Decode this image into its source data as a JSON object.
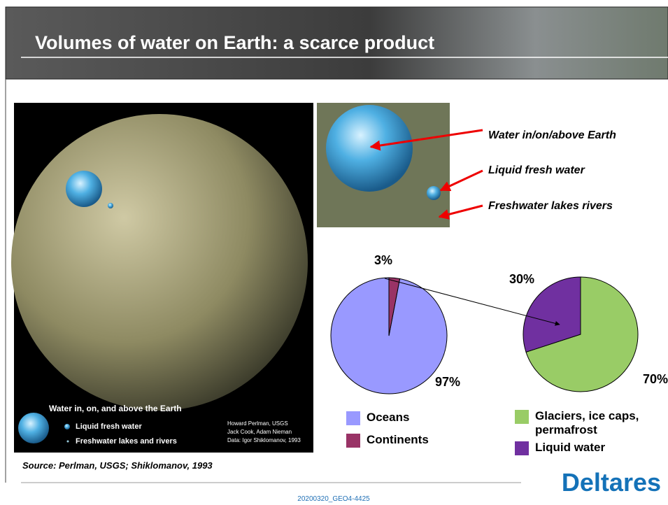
{
  "title": "Volumes of water on Earth: a scarce product",
  "globe_image": {
    "caption": "Water in, on, and above the Earth",
    "legend": [
      "Liquid fresh water",
      "Freshwater lakes and rivers"
    ],
    "credits": [
      "Howard Perlman, USGS",
      "Jack Cook, Adam Nieman",
      "Data: Igor Shiklomanov, 1993"
    ]
  },
  "callouts": [
    "Water in/on/above Earth",
    "Liquid fresh water",
    "Freshwater lakes rivers"
  ],
  "source": "Source: Perlman, USGS; Shiklomanov, 1993",
  "footer": "20200320_GEO4-4425",
  "logo": "Deltares",
  "chart_data": [
    {
      "type": "pie",
      "categories": [
        "Oceans",
        "Continents"
      ],
      "values": [
        97,
        3
      ],
      "value_labels": [
        "97%",
        "3%"
      ],
      "colors": [
        "#9999ff",
        "#993366"
      ],
      "clockwise": false
    },
    {
      "type": "pie",
      "categories": [
        "Glaciers, ice caps, permafrost",
        "Liquid water"
      ],
      "values": [
        70,
        30
      ],
      "value_labels": [
        "70%",
        "30%"
      ],
      "colors": [
        "#99cc66",
        "#7030a0"
      ],
      "clockwise": true
    }
  ]
}
